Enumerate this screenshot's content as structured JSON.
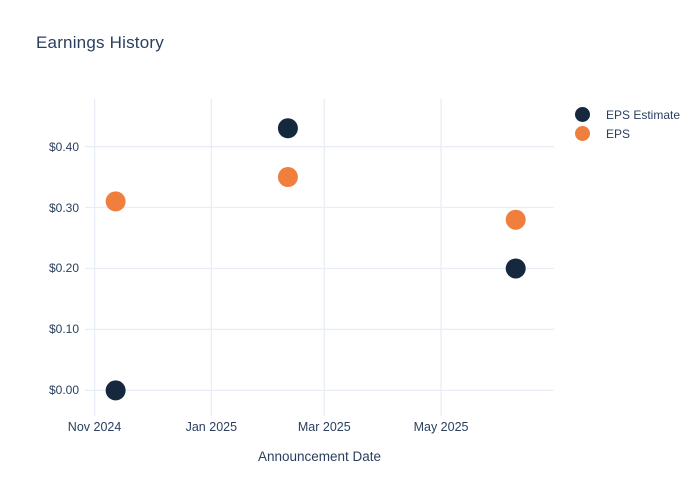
{
  "colors": {
    "background": "#ffffff",
    "title_text": "#2a3f5f",
    "axis_text": "#2a3f5f",
    "gridline": "#e8edf6",
    "eps_estimate_marker": "#16283e",
    "eps_marker": "#f07e3d"
  },
  "chart_data": {
    "type": "scatter",
    "title": "Earnings History",
    "xlabel": "Announcement Date",
    "ylabel": "",
    "legend_position": "right-top",
    "grid": true,
    "x_axis": {
      "kind": "date",
      "range_days": [
        -5,
        240
      ],
      "ticks": [
        {
          "label": "Nov 2024",
          "days": 0
        },
        {
          "label": "Jan 2025",
          "days": 61
        },
        {
          "label": "Mar 2025",
          "days": 120
        },
        {
          "label": "May 2025",
          "days": 181
        }
      ]
    },
    "y_axis": {
      "range": [
        -0.042,
        0.478
      ],
      "ticks": [
        {
          "label": "$0.00",
          "value": 0.0
        },
        {
          "label": "$0.10",
          "value": 0.1
        },
        {
          "label": "$0.20",
          "value": 0.2
        },
        {
          "label": "$0.30",
          "value": 0.3
        },
        {
          "label": "$0.40",
          "value": 0.4
        }
      ]
    },
    "series": [
      {
        "name": "EPS Estimate",
        "color": "#16283e",
        "marker_radius": 10,
        "points": [
          {
            "date_est": "2024-11-12",
            "days": 11,
            "value": 0.0
          },
          {
            "date_est": "2025-02-09",
            "days": 101,
            "value": 0.43
          },
          {
            "date_est": "2025-06-09",
            "days": 220,
            "value": 0.2
          }
        ]
      },
      {
        "name": "EPS",
        "color": "#f07e3d",
        "marker_radius": 10,
        "points": [
          {
            "date_est": "2024-11-12",
            "days": 11,
            "value": 0.31
          },
          {
            "date_est": "2025-02-09",
            "days": 101,
            "value": 0.35
          },
          {
            "date_est": "2025-06-09",
            "days": 220,
            "value": 0.28
          }
        ]
      }
    ]
  }
}
